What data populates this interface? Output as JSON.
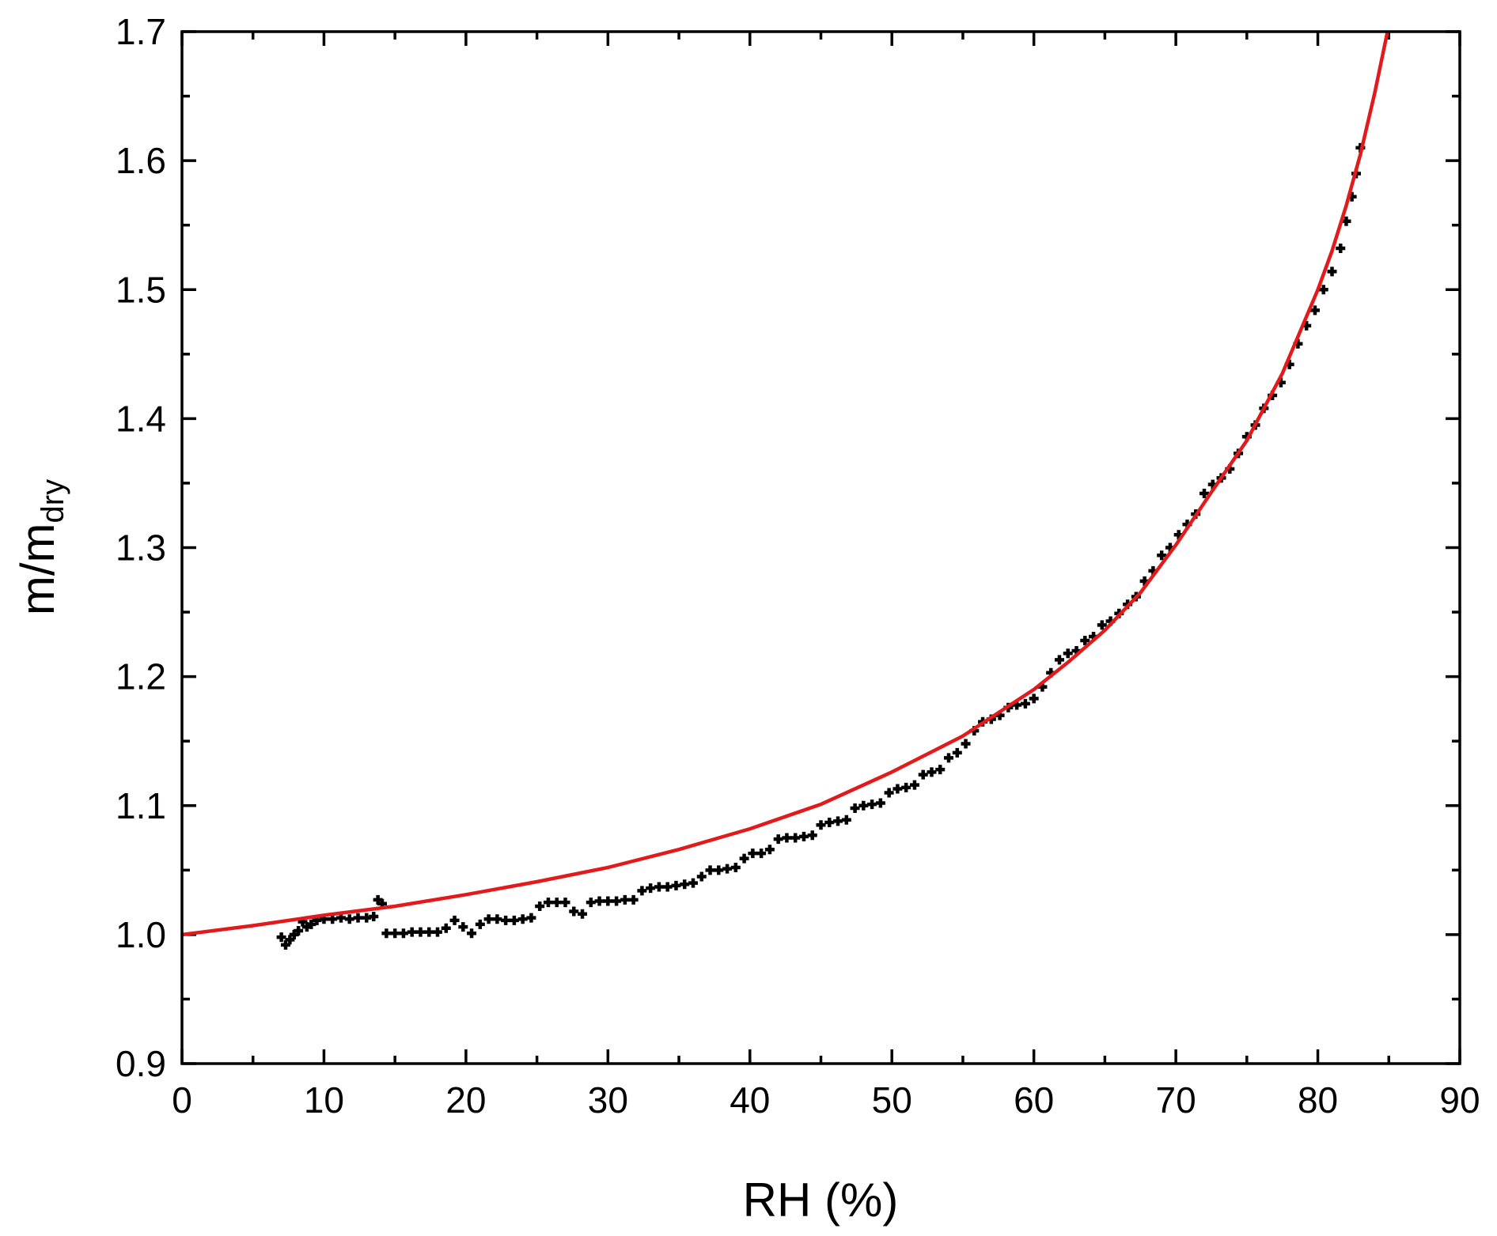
{
  "chart_data": {
    "type": "scatter",
    "xlabel": "RH (%)",
    "ylabel_main": "m/m",
    "ylabel_sub": "dry",
    "xlim": [
      0,
      90
    ],
    "ylim": [
      0.9,
      1.7
    ],
    "x_ticks": [
      "0",
      "10",
      "20",
      "30",
      "40",
      "50",
      "60",
      "70",
      "80",
      "90"
    ],
    "y_ticks": [
      "0.9",
      "1.0",
      "1.1",
      "1.2",
      "1.3",
      "1.4",
      "1.5",
      "1.6",
      "1.7"
    ],
    "x_tick_values": [
      0,
      10,
      20,
      30,
      40,
      50,
      60,
      70,
      80,
      90
    ],
    "y_tick_values": [
      0.9,
      1.0,
      1.1,
      1.2,
      1.3,
      1.4,
      1.5,
      1.6,
      1.7
    ],
    "grid": false,
    "series": [
      {
        "type": "scatter",
        "marker": "cross",
        "color": "#000000",
        "points": [
          [
            7.0,
            0.998
          ],
          [
            7.3,
            0.992
          ],
          [
            7.6,
            0.996
          ],
          [
            7.9,
            1.0
          ],
          [
            8.2,
            1.003
          ],
          [
            8.5,
            1.01
          ],
          [
            8.8,
            1.006
          ],
          [
            9.1,
            1.008
          ],
          [
            9.5,
            1.011
          ],
          [
            10.0,
            1.012
          ],
          [
            10.6,
            1.012
          ],
          [
            11.2,
            1.013
          ],
          [
            11.8,
            1.012
          ],
          [
            12.4,
            1.013
          ],
          [
            13.0,
            1.013
          ],
          [
            13.5,
            1.014
          ],
          [
            13.8,
            1.027
          ],
          [
            14.1,
            1.024
          ],
          [
            14.4,
            1.001
          ],
          [
            15.0,
            1.001
          ],
          [
            15.6,
            1.001
          ],
          [
            16.2,
            1.002
          ],
          [
            16.8,
            1.002
          ],
          [
            17.4,
            1.002
          ],
          [
            18.0,
            1.002
          ],
          [
            18.6,
            1.005
          ],
          [
            19.2,
            1.011
          ],
          [
            19.8,
            1.006
          ],
          [
            20.4,
            1.001
          ],
          [
            21.0,
            1.008
          ],
          [
            21.6,
            1.012
          ],
          [
            22.2,
            1.012
          ],
          [
            22.8,
            1.011
          ],
          [
            23.4,
            1.011
          ],
          [
            24.0,
            1.012
          ],
          [
            24.6,
            1.013
          ],
          [
            25.2,
            1.022
          ],
          [
            25.8,
            1.025
          ],
          [
            26.4,
            1.025
          ],
          [
            27.0,
            1.025
          ],
          [
            27.6,
            1.018
          ],
          [
            28.2,
            1.016
          ],
          [
            28.8,
            1.025
          ],
          [
            29.4,
            1.026
          ],
          [
            30.0,
            1.026
          ],
          [
            30.6,
            1.026
          ],
          [
            31.2,
            1.027
          ],
          [
            31.8,
            1.027
          ],
          [
            32.4,
            1.034
          ],
          [
            33.0,
            1.036
          ],
          [
            33.6,
            1.037
          ],
          [
            34.2,
            1.037
          ],
          [
            34.8,
            1.038
          ],
          [
            35.4,
            1.039
          ],
          [
            36.0,
            1.04
          ],
          [
            36.6,
            1.045
          ],
          [
            37.2,
            1.05
          ],
          [
            37.8,
            1.05
          ],
          [
            38.4,
            1.051
          ],
          [
            39.0,
            1.052
          ],
          [
            39.6,
            1.059
          ],
          [
            40.2,
            1.063
          ],
          [
            40.8,
            1.063
          ],
          [
            41.4,
            1.066
          ],
          [
            42.0,
            1.074
          ],
          [
            42.6,
            1.075
          ],
          [
            43.2,
            1.075
          ],
          [
            43.8,
            1.076
          ],
          [
            44.4,
            1.077
          ],
          [
            45.0,
            1.085
          ],
          [
            45.6,
            1.087
          ],
          [
            46.2,
            1.088
          ],
          [
            46.8,
            1.089
          ],
          [
            47.4,
            1.098
          ],
          [
            48.0,
            1.1
          ],
          [
            48.6,
            1.101
          ],
          [
            49.2,
            1.102
          ],
          [
            49.8,
            1.11
          ],
          [
            50.4,
            1.113
          ],
          [
            51.0,
            1.114
          ],
          [
            51.6,
            1.116
          ],
          [
            52.2,
            1.124
          ],
          [
            52.8,
            1.126
          ],
          [
            53.4,
            1.128
          ],
          [
            54.0,
            1.137
          ],
          [
            54.6,
            1.141
          ],
          [
            55.2,
            1.148
          ],
          [
            55.8,
            1.158
          ],
          [
            56.4,
            1.165
          ],
          [
            57.0,
            1.167
          ],
          [
            57.6,
            1.17
          ],
          [
            58.2,
            1.176
          ],
          [
            58.8,
            1.178
          ],
          [
            59.4,
            1.179
          ],
          [
            60.0,
            1.183
          ],
          [
            60.6,
            1.192
          ],
          [
            61.2,
            1.203
          ],
          [
            61.8,
            1.213
          ],
          [
            62.4,
            1.218
          ],
          [
            63.0,
            1.22
          ],
          [
            63.6,
            1.228
          ],
          [
            64.2,
            1.231
          ],
          [
            64.8,
            1.24
          ],
          [
            65.4,
            1.243
          ],
          [
            66.0,
            1.249
          ],
          [
            66.6,
            1.256
          ],
          [
            67.2,
            1.262
          ],
          [
            67.8,
            1.274
          ],
          [
            68.4,
            1.282
          ],
          [
            69.0,
            1.294
          ],
          [
            69.6,
            1.3
          ],
          [
            70.2,
            1.31
          ],
          [
            70.8,
            1.318
          ],
          [
            71.4,
            1.326
          ],
          [
            72.0,
            1.342
          ],
          [
            72.6,
            1.349
          ],
          [
            73.2,
            1.354
          ],
          [
            73.8,
            1.361
          ],
          [
            74.4,
            1.373
          ],
          [
            75.0,
            1.386
          ],
          [
            75.6,
            1.395
          ],
          [
            76.2,
            1.408
          ],
          [
            76.8,
            1.418
          ],
          [
            77.4,
            1.428
          ],
          [
            78.0,
            1.442
          ],
          [
            78.6,
            1.458
          ],
          [
            79.2,
            1.472
          ],
          [
            79.8,
            1.484
          ],
          [
            80.4,
            1.5
          ],
          [
            81.0,
            1.514
          ],
          [
            81.6,
            1.532
          ],
          [
            82.0,
            1.553
          ],
          [
            82.4,
            1.572
          ],
          [
            82.7,
            1.59
          ],
          [
            83.0,
            1.61
          ]
        ]
      },
      {
        "type": "line",
        "color": "#e31a1c",
        "points": [
          [
            0,
            1.0
          ],
          [
            5,
            1.007
          ],
          [
            10,
            1.015
          ],
          [
            15,
            1.022
          ],
          [
            20,
            1.031
          ],
          [
            25,
            1.041
          ],
          [
            30,
            1.052
          ],
          [
            35,
            1.066
          ],
          [
            40,
            1.082
          ],
          [
            45,
            1.101
          ],
          [
            50,
            1.126
          ],
          [
            55,
            1.154
          ],
          [
            60,
            1.19
          ],
          [
            62.5,
            1.212
          ],
          [
            65,
            1.236
          ],
          [
            67.5,
            1.265
          ],
          [
            70,
            1.302
          ],
          [
            72.5,
            1.343
          ],
          [
            75,
            1.383
          ],
          [
            77.5,
            1.435
          ],
          [
            80,
            1.5
          ],
          [
            81,
            1.53
          ],
          [
            82,
            1.565
          ],
          [
            83,
            1.605
          ],
          [
            84,
            1.652
          ],
          [
            85,
            1.705
          ]
        ]
      }
    ]
  }
}
